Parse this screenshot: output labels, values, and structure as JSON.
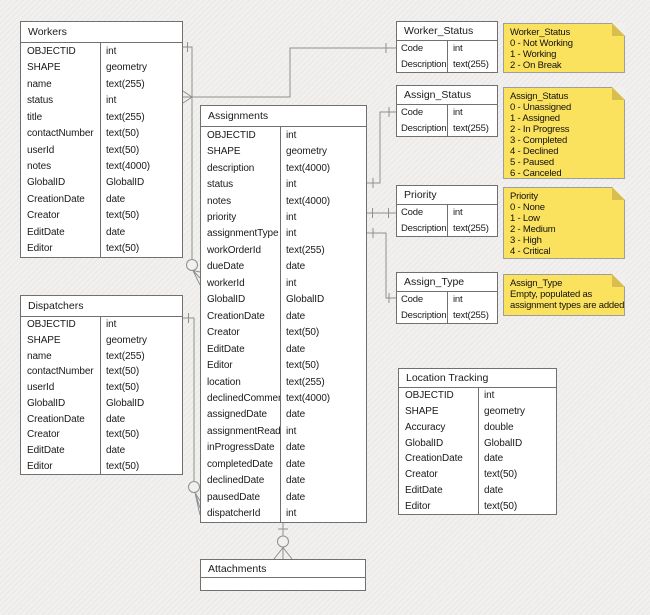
{
  "colors": {
    "background": "#f1f0ee",
    "table_fill": "#ffffff",
    "table_border": "#707070",
    "connector": "#8f8f8f",
    "note_fill": "#fbe25e",
    "note_fold": "#d9bd4e",
    "note_border": "#9e9e9e",
    "text": "#1a1a1a"
  },
  "diagram": {
    "tables": {
      "workers": {
        "title": "Workers",
        "rows": [
          [
            "OBJECTID",
            "int"
          ],
          [
            "SHAPE",
            "geometry"
          ],
          [
            "name",
            "text(255)"
          ],
          [
            "status",
            "int"
          ],
          [
            "title",
            "text(255)"
          ],
          [
            "contactNumber",
            "text(50)"
          ],
          [
            "userId",
            "text(50)"
          ],
          [
            "notes",
            "text(4000)"
          ],
          [
            "GlobalID",
            "GlobalID"
          ],
          [
            "CreationDate",
            "date"
          ],
          [
            "Creator",
            "text(50)"
          ],
          [
            "EditDate",
            "date"
          ],
          [
            "Editor",
            "text(50)"
          ]
        ]
      },
      "assignments": {
        "title": "Assignments",
        "rows": [
          [
            "OBJECTID",
            "int"
          ],
          [
            "SHAPE",
            "geometry"
          ],
          [
            "description",
            "text(4000)"
          ],
          [
            "status",
            "int"
          ],
          [
            "notes",
            "text(4000)"
          ],
          [
            "priority",
            "int"
          ],
          [
            "assignmentType",
            "int"
          ],
          [
            "workOrderId",
            "text(255)"
          ],
          [
            "dueDate",
            "date"
          ],
          [
            "workerId",
            "int"
          ],
          [
            "GlobalID",
            "GlobalID"
          ],
          [
            "CreationDate",
            "date"
          ],
          [
            "Creator",
            "text(50)"
          ],
          [
            "EditDate",
            "date"
          ],
          [
            "Editor",
            "text(50)"
          ],
          [
            "location",
            "text(255)"
          ],
          [
            "declinedComment",
            "text(4000)"
          ],
          [
            "assignedDate",
            "date"
          ],
          [
            "assignmentRead",
            "int"
          ],
          [
            "inProgressDate",
            "date"
          ],
          [
            "completedDate",
            "date"
          ],
          [
            "declinedDate",
            "date"
          ],
          [
            "pausedDate",
            "date"
          ],
          [
            "dispatcherId",
            "int"
          ]
        ]
      },
      "dispatchers": {
        "title": "Dispatchers",
        "rows": [
          [
            "OBJECTID",
            "int"
          ],
          [
            "SHAPE",
            "geometry"
          ],
          [
            "name",
            "text(255)"
          ],
          [
            "contactNumber",
            "text(50)"
          ],
          [
            "userId",
            "text(50)"
          ],
          [
            "GlobalID",
            "GlobalID"
          ],
          [
            "CreationDate",
            "date"
          ],
          [
            "Creator",
            "text(50)"
          ],
          [
            "EditDate",
            "date"
          ],
          [
            "Editor",
            "text(50)"
          ]
        ]
      },
      "worker_status": {
        "title": "Worker_Status",
        "rows": [
          [
            "Code",
            "int"
          ],
          [
            "Description",
            "text(255)"
          ]
        ]
      },
      "assign_status": {
        "title": "Assign_Status",
        "rows": [
          [
            "Code",
            "int"
          ],
          [
            "Description",
            "text(255)"
          ]
        ]
      },
      "priority": {
        "title": "Priority",
        "rows": [
          [
            "Code",
            "int"
          ],
          [
            "Description",
            "text(255)"
          ]
        ]
      },
      "assign_type": {
        "title": "Assign_Type",
        "rows": [
          [
            "Code",
            "int"
          ],
          [
            "Description",
            "text(255)"
          ]
        ]
      },
      "location_tracking": {
        "title": "Location Tracking",
        "rows": [
          [
            "OBJECTID",
            "int"
          ],
          [
            "SHAPE",
            "geometry"
          ],
          [
            "Accuracy",
            "double"
          ],
          [
            "GlobalID",
            "GlobalID"
          ],
          [
            "CreationDate",
            "date"
          ],
          [
            "Creator",
            "text(50)"
          ],
          [
            "EditDate",
            "date"
          ],
          [
            "Editor",
            "text(50)"
          ]
        ]
      },
      "attachments": {
        "title": "Attachments",
        "rows": []
      }
    },
    "notes": {
      "worker_status": {
        "title": "Worker_Status",
        "lines": [
          "0 - Not Working",
          "1 - Working",
          "2 - On Break"
        ]
      },
      "assign_status": {
        "title": "Assign_Status",
        "lines": [
          "0 - Unassigned",
          "1 - Assigned",
          "2 - In Progress",
          "3 - Completed",
          "4 - Declined",
          "5 - Paused",
          "6 - Canceled"
        ]
      },
      "priority": {
        "title": "Priority",
        "lines": [
          "0 - None",
          "1 - Low",
          "2 - Medium",
          "3 - High",
          "4 - Critical"
        ]
      },
      "assign_type": {
        "title": "Assign_Type",
        "lines": [
          "Empty, populated as",
          "assignment types are added"
        ]
      }
    },
    "relationships": [
      {
        "from": "Workers.status",
        "to": "Worker_Status.Code",
        "cardinality": "many-to-one"
      },
      {
        "from": "Workers.OBJECTID",
        "to": "Assignments.workerId",
        "cardinality": "one-to-zero-or-many"
      },
      {
        "from": "Dispatchers.OBJECTID",
        "to": "Assignments.dispatcherId",
        "cardinality": "one-to-zero-or-many"
      },
      {
        "from": "Assignments.status",
        "to": "Assign_Status.Code",
        "cardinality": "many-to-one"
      },
      {
        "from": "Assignments.priority",
        "to": "Priority.Code",
        "cardinality": "many-to-one"
      },
      {
        "from": "Assignments.assignmentType",
        "to": "Assign_Type.Code",
        "cardinality": "many-to-one"
      },
      {
        "from": "Assignments",
        "to": "Attachments",
        "cardinality": "one-to-zero-or-many"
      }
    ]
  }
}
